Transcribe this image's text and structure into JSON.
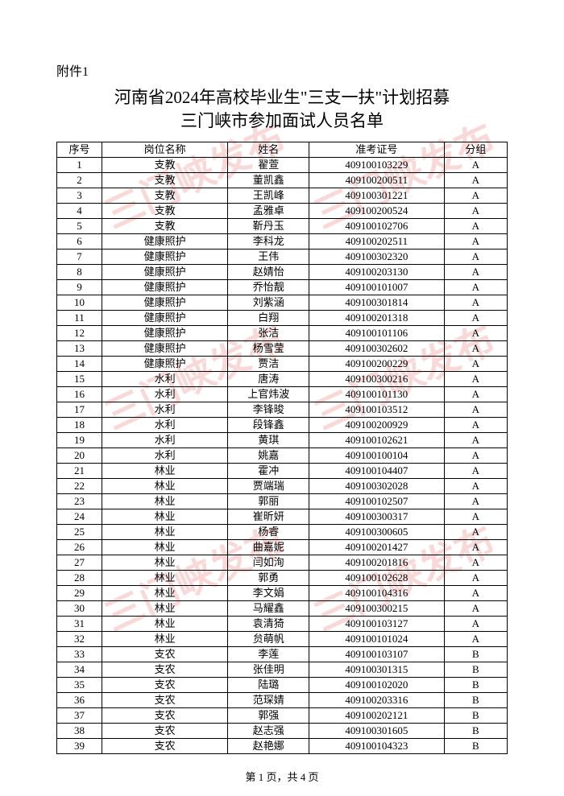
{
  "attachment": "附件1",
  "title_line1": "河南省2024年高校毕业生\"三支一扶\"计划招募",
  "title_line2": "三门峡市参加面试人员名单",
  "headers": {
    "seq": "序号",
    "position": "岗位名称",
    "name": "姓名",
    "examno": "准考证号",
    "group": "分组"
  },
  "rows": [
    {
      "seq": "1",
      "position": "支教",
      "name": "翟萱",
      "examno": "409100103229",
      "group": "A"
    },
    {
      "seq": "2",
      "position": "支教",
      "name": "董凯鑫",
      "examno": "409100200511",
      "group": "A"
    },
    {
      "seq": "3",
      "position": "支教",
      "name": "王凯峰",
      "examno": "409100301221",
      "group": "A"
    },
    {
      "seq": "4",
      "position": "支教",
      "name": "孟雅卓",
      "examno": "409100200524",
      "group": "A"
    },
    {
      "seq": "5",
      "position": "支教",
      "name": "靳丹玉",
      "examno": "409100102706",
      "group": "A"
    },
    {
      "seq": "6",
      "position": "健康照护",
      "name": "李科龙",
      "examno": "409100202511",
      "group": "A"
    },
    {
      "seq": "7",
      "position": "健康照护",
      "name": "王伟",
      "examno": "409100302320",
      "group": "A"
    },
    {
      "seq": "8",
      "position": "健康照护",
      "name": "赵婧怡",
      "examno": "409100203130",
      "group": "A"
    },
    {
      "seq": "9",
      "position": "健康照护",
      "name": "乔怡靓",
      "examno": "409100101007",
      "group": "A"
    },
    {
      "seq": "10",
      "position": "健康照护",
      "name": "刘紫涵",
      "examno": "409100301814",
      "group": "A"
    },
    {
      "seq": "11",
      "position": "健康照护",
      "name": "白翔",
      "examno": "409100201318",
      "group": "A"
    },
    {
      "seq": "12",
      "position": "健康照护",
      "name": "张洁",
      "examno": "409100101106",
      "group": "A"
    },
    {
      "seq": "13",
      "position": "健康照护",
      "name": "杨雪莹",
      "examno": "409100302602",
      "group": "A"
    },
    {
      "seq": "14",
      "position": "健康照护",
      "name": "贾洁",
      "examno": "409100200229",
      "group": "A"
    },
    {
      "seq": "15",
      "position": "水利",
      "name": "唐涛",
      "examno": "409100300216",
      "group": "A"
    },
    {
      "seq": "16",
      "position": "水利",
      "name": "上官炜波",
      "examno": "409100101130",
      "group": "A"
    },
    {
      "seq": "17",
      "position": "水利",
      "name": "李锋晙",
      "examno": "409100103512",
      "group": "A"
    },
    {
      "seq": "18",
      "position": "水利",
      "name": "段锋鑫",
      "examno": "409100200929",
      "group": "A"
    },
    {
      "seq": "19",
      "position": "水利",
      "name": "黄琪",
      "examno": "409100102621",
      "group": "A"
    },
    {
      "seq": "20",
      "position": "水利",
      "name": "姚嘉",
      "examno": "409100100104",
      "group": "A"
    },
    {
      "seq": "21",
      "position": "林业",
      "name": "霍冲",
      "examno": "409100104407",
      "group": "A"
    },
    {
      "seq": "22",
      "position": "林业",
      "name": "贾端瑞",
      "examno": "409100302028",
      "group": "A"
    },
    {
      "seq": "23",
      "position": "林业",
      "name": "郭丽",
      "examno": "409100102507",
      "group": "A"
    },
    {
      "seq": "24",
      "position": "林业",
      "name": "崔昕妍",
      "examno": "409100300317",
      "group": "A"
    },
    {
      "seq": "25",
      "position": "林业",
      "name": "杨睿",
      "examno": "409100300605",
      "group": "A"
    },
    {
      "seq": "26",
      "position": "林业",
      "name": "曲嘉妮",
      "examno": "409100201427",
      "group": "A"
    },
    {
      "seq": "27",
      "position": "林业",
      "name": "闫如洵",
      "examno": "409100201816",
      "group": "A"
    },
    {
      "seq": "28",
      "position": "林业",
      "name": "郭勇",
      "examno": "409100102628",
      "group": "A"
    },
    {
      "seq": "29",
      "position": "林业",
      "name": "李文娟",
      "examno": "409100104316",
      "group": "A"
    },
    {
      "seq": "30",
      "position": "林业",
      "name": "马耀鑫",
      "examno": "409100300215",
      "group": "A"
    },
    {
      "seq": "31",
      "position": "林业",
      "name": "袁清猗",
      "examno": "409100103127",
      "group": "A"
    },
    {
      "seq": "32",
      "position": "林业",
      "name": "贠萌帆",
      "examno": "409100101024",
      "group": "A"
    },
    {
      "seq": "33",
      "position": "支农",
      "name": "李莲",
      "examno": "409100103107",
      "group": "B"
    },
    {
      "seq": "34",
      "position": "支农",
      "name": "张佳明",
      "examno": "409100301315",
      "group": "B"
    },
    {
      "seq": "35",
      "position": "支农",
      "name": "陆璐",
      "examno": "409100102020",
      "group": "B"
    },
    {
      "seq": "36",
      "position": "支农",
      "name": "范琛婧",
      "examno": "409100203316",
      "group": "B"
    },
    {
      "seq": "37",
      "position": "支农",
      "name": "郭强",
      "examno": "409100202121",
      "group": "B"
    },
    {
      "seq": "38",
      "position": "支农",
      "name": "赵志强",
      "examno": "409100301605",
      "group": "B"
    },
    {
      "seq": "39",
      "position": "支农",
      "name": "赵艳娜",
      "examno": "409100104323",
      "group": "B"
    }
  ],
  "footer": "第 1 页，共 4 页",
  "watermark_text": "三门峡发布"
}
